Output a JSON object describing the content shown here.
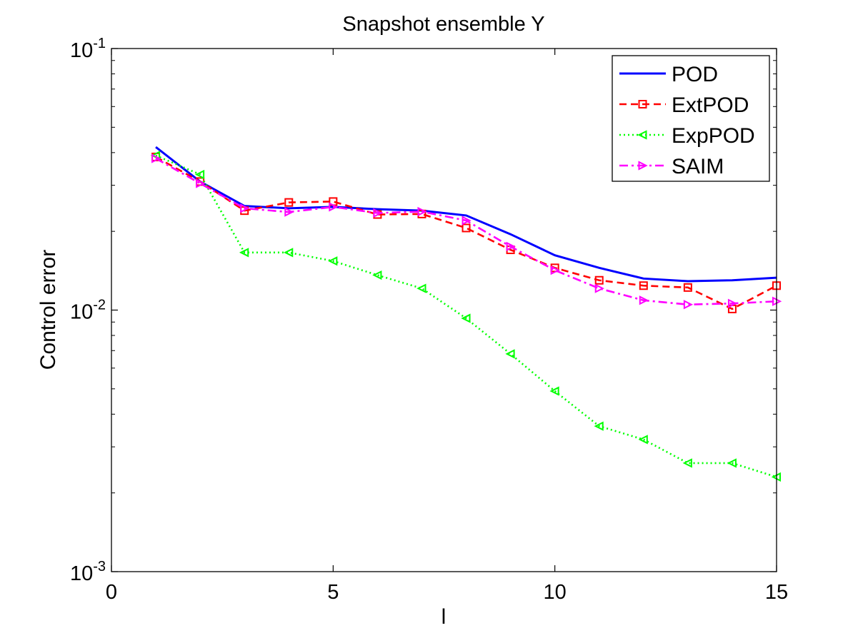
{
  "chart_data": {
    "type": "line",
    "title": "Snapshot ensemble Y",
    "xlabel": "l",
    "ylabel": "Control error",
    "xlim": [
      0,
      15
    ],
    "ylim": [
      0.001,
      0.1
    ],
    "yscale": "log",
    "grid": false,
    "legend_position": "top-right",
    "x_ticks": [
      0,
      5,
      10,
      15
    ],
    "x_tick_labels": [
      "0",
      "5",
      "10",
      "15"
    ],
    "y_ticks": [
      0.001,
      0.01,
      0.1
    ],
    "y_tick_labels": [
      {
        "base": "10",
        "exp": "-3"
      },
      {
        "base": "10",
        "exp": "-2"
      },
      {
        "base": "10",
        "exp": "-1"
      }
    ],
    "x": [
      1,
      2,
      3,
      4,
      5,
      6,
      7,
      8,
      9,
      10,
      11,
      12,
      13,
      14,
      15
    ],
    "series": [
      {
        "name": "POD",
        "color": "#0000ff",
        "dash": "",
        "marker": "none",
        "values": [
          0.042,
          0.031,
          0.025,
          0.0245,
          0.0248,
          0.0243,
          0.024,
          0.023,
          0.0195,
          0.0162,
          0.0145,
          0.0132,
          0.0129,
          0.013,
          0.0133
        ]
      },
      {
        "name": "ExtPOD",
        "color": "#ff0000",
        "dash": "10,6",
        "marker": "square",
        "values": [
          0.0385,
          0.031,
          0.024,
          0.0258,
          0.026,
          0.0232,
          0.0233,
          0.0206,
          0.017,
          0.0145,
          0.013,
          0.0124,
          0.0122,
          0.0101,
          0.0124
        ]
      },
      {
        "name": "ExpPOD",
        "color": "#00ff00",
        "dash": "2,4",
        "marker": "triangle-left",
        "values": [
          0.039,
          0.033,
          0.0166,
          0.0166,
          0.0154,
          0.0136,
          0.0121,
          0.0093,
          0.0068,
          0.0049,
          0.0036,
          0.0032,
          0.0026,
          0.0026,
          0.0023
        ]
      },
      {
        "name": "SAIM",
        "color": "#ff00ff",
        "dash": "12,5,3,5",
        "marker": "triangle-right",
        "values": [
          0.038,
          0.0305,
          0.0245,
          0.0237,
          0.0248,
          0.0235,
          0.0238,
          0.022,
          0.0175,
          0.0142,
          0.0121,
          0.0109,
          0.0105,
          0.0106,
          0.0108
        ]
      }
    ]
  }
}
